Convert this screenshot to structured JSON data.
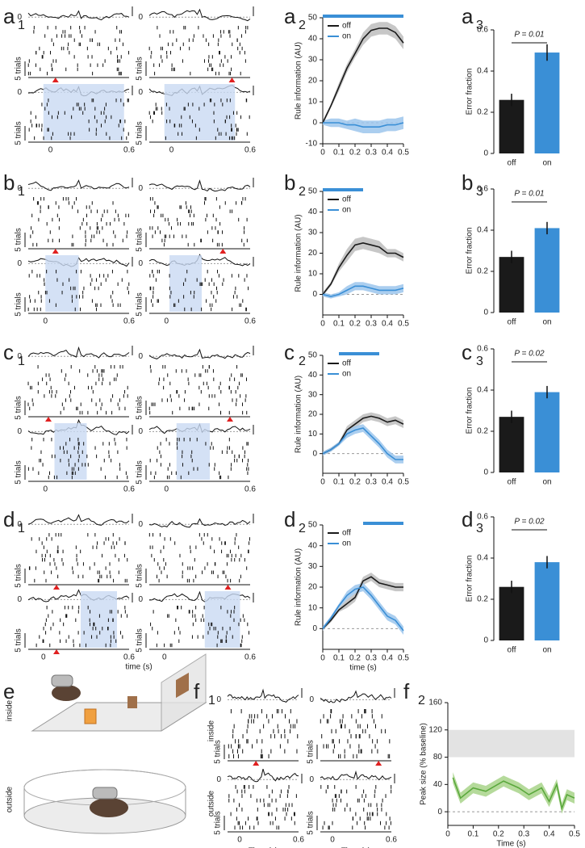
{
  "panels": [
    {
      "letter": "a",
      "sub": "1"
    },
    {
      "letter": "a",
      "sub": "2"
    },
    {
      "letter": "a",
      "sub": "3"
    },
    {
      "letter": "b",
      "sub": "1"
    },
    {
      "letter": "b",
      "sub": "2"
    },
    {
      "letter": "b",
      "sub": "3"
    },
    {
      "letter": "c",
      "sub": "1"
    },
    {
      "letter": "c",
      "sub": "2"
    },
    {
      "letter": "c",
      "sub": "3"
    },
    {
      "letter": "d",
      "sub": "1"
    },
    {
      "letter": "d",
      "sub": "2"
    },
    {
      "letter": "d",
      "sub": "3"
    },
    {
      "letter": "e"
    },
    {
      "letter": "f",
      "sub": "1"
    },
    {
      "letter": "f",
      "sub": "2"
    }
  ],
  "rasters": {
    "zero": "0",
    "trials": "5 trials",
    "x_start": "0",
    "x_end": "0.6",
    "xlabel": "time (s)"
  },
  "e": {
    "inside": "inside",
    "outside": "outside"
  },
  "f1": {
    "inside": "inside",
    "outside": "outside",
    "trials": "5 trials",
    "zero": "0",
    "x_start": "0",
    "x_end": "0.6",
    "xlabel": "Time (s)"
  },
  "chart_data": [
    {
      "type": "line",
      "x": [
        0,
        0.05,
        0.1,
        0.15,
        0.2,
        0.25,
        0.3,
        0.35,
        0.4,
        0.45,
        0.5
      ],
      "series": [
        {
          "name": "off",
          "color": "#1a1a1a",
          "band_color": "#bdbdbd",
          "values": [
            0,
            8,
            17,
            26,
            33,
            40,
            44,
            45,
            45,
            43,
            38
          ],
          "errors": [
            1,
            1,
            2,
            2,
            2,
            3,
            3,
            3,
            3,
            3,
            3
          ]
        },
        {
          "name": "on",
          "color": "#3a8fd6",
          "band_color": "#9cc6ec",
          "values": [
            0,
            0,
            0,
            -1,
            -1,
            -2,
            -2,
            -2,
            -1,
            -1,
            0
          ],
          "errors": [
            1,
            2,
            2,
            2,
            3,
            3,
            3,
            3,
            3,
            3,
            3
          ]
        }
      ],
      "xlim": [
        0,
        0.5
      ],
      "ylim": [
        -10,
        50
      ],
      "xticks": [
        0,
        0.1,
        0.2,
        0.3,
        0.4,
        0.5
      ],
      "yticks": [
        -10,
        0,
        10,
        20,
        30,
        40,
        50
      ],
      "ylabel": "Rule information (AU)",
      "sig_bar": [
        0,
        0.5
      ],
      "sig_color": "#3a8fd6"
    },
    {
      "type": "bar",
      "categories": [
        "off",
        "on"
      ],
      "values": [
        0.26,
        0.49
      ],
      "errors": [
        0.03,
        0.04
      ],
      "colors": [
        "#1a1a1a",
        "#3a8fd6"
      ],
      "ylim": [
        0,
        0.6
      ],
      "yticks": [
        0,
        0.2,
        0.4,
        0.6
      ],
      "ylabel": "Error fraction",
      "annotation": "P = 0.01"
    },
    {
      "type": "line",
      "x": [
        0,
        0.05,
        0.1,
        0.15,
        0.2,
        0.25,
        0.3,
        0.35,
        0.4,
        0.45,
        0.5
      ],
      "series": [
        {
          "name": "off",
          "color": "#1a1a1a",
          "band_color": "#bdbdbd",
          "values": [
            0,
            5,
            13,
            19,
            24,
            25,
            24,
            23,
            20,
            20,
            18
          ],
          "errors": [
            1,
            1,
            2,
            3,
            3,
            3,
            3,
            3,
            2,
            2,
            2
          ]
        },
        {
          "name": "on",
          "color": "#3a8fd6",
          "band_color": "#9cc6ec",
          "values": [
            0,
            -1,
            0,
            2,
            4,
            4,
            3,
            2,
            2,
            2,
            3
          ],
          "errors": [
            1,
            1,
            1,
            2,
            2,
            2,
            2,
            2,
            2,
            2,
            2
          ]
        }
      ],
      "xlim": [
        0,
        0.5
      ],
      "ylim": [
        -10,
        50
      ],
      "xticks": [
        0,
        0.1,
        0.2,
        0.3,
        0.4,
        0.5
      ],
      "yticks": [
        0,
        10,
        20,
        30,
        40,
        50
      ],
      "ylabel": "Rule information (AU)",
      "sig_bar": [
        0,
        0.25
      ],
      "sig_color": "#3a8fd6"
    },
    {
      "type": "bar",
      "categories": [
        "off",
        "on"
      ],
      "values": [
        0.27,
        0.41
      ],
      "errors": [
        0.03,
        0.03
      ],
      "colors": [
        "#1a1a1a",
        "#3a8fd6"
      ],
      "ylim": [
        0,
        0.6
      ],
      "yticks": [
        0,
        0.2,
        0.4,
        0.6
      ],
      "ylabel": "Error fraction",
      "annotation": "P = 0.01"
    },
    {
      "type": "line",
      "x": [
        0,
        0.05,
        0.1,
        0.15,
        0.2,
        0.25,
        0.3,
        0.35,
        0.4,
        0.45,
        0.5
      ],
      "series": [
        {
          "name": "off",
          "color": "#1a1a1a",
          "band_color": "#bdbdbd",
          "values": [
            0,
            2,
            5,
            12,
            15,
            18,
            19,
            18,
            16,
            17,
            15
          ],
          "errors": [
            1,
            1,
            1,
            2,
            2,
            2,
            2,
            2,
            2,
            2,
            2
          ]
        },
        {
          "name": "on",
          "color": "#3a8fd6",
          "band_color": "#9cc6ec",
          "values": [
            0,
            2,
            5,
            10,
            12,
            13,
            9,
            5,
            0,
            -3,
            -3
          ],
          "errors": [
            1,
            1,
            1,
            2,
            2,
            2,
            2,
            2,
            2,
            2,
            2
          ]
        }
      ],
      "xlim": [
        0,
        0.5
      ],
      "ylim": [
        -10,
        50
      ],
      "xticks": [
        0,
        0.1,
        0.2,
        0.3,
        0.4,
        0.5
      ],
      "yticks": [
        0,
        10,
        20,
        30,
        40,
        50
      ],
      "ylabel": "Rule information (AU)",
      "sig_bar": [
        0.1,
        0.35
      ],
      "sig_color": "#3a8fd6"
    },
    {
      "type": "bar",
      "categories": [
        "off",
        "on"
      ],
      "values": [
        0.27,
        0.39
      ],
      "errors": [
        0.03,
        0.03
      ],
      "colors": [
        "#1a1a1a",
        "#3a8fd6"
      ],
      "ylim": [
        0,
        0.6
      ],
      "yticks": [
        0,
        0.2,
        0.4,
        0.6
      ],
      "ylabel": "Error fraction",
      "annotation": "P = 0.02"
    },
    {
      "type": "line",
      "x": [
        0,
        0.05,
        0.1,
        0.15,
        0.2,
        0.25,
        0.3,
        0.35,
        0.4,
        0.45,
        0.5
      ],
      "series": [
        {
          "name": "off",
          "color": "#1a1a1a",
          "band_color": "#bdbdbd",
          "values": [
            0,
            4,
            9,
            12,
            15,
            23,
            25,
            22,
            21,
            20,
            20
          ],
          "errors": [
            1,
            1,
            1,
            2,
            2,
            2,
            2,
            2,
            2,
            2,
            2
          ]
        },
        {
          "name": "on",
          "color": "#3a8fd6",
          "band_color": "#9cc6ec",
          "values": [
            0,
            5,
            11,
            16,
            19,
            20,
            16,
            11,
            6,
            4,
            -1
          ],
          "errors": [
            1,
            1,
            1,
            2,
            2,
            2,
            2,
            2,
            2,
            2,
            2
          ]
        }
      ],
      "xlim": [
        0,
        0.5
      ],
      "ylim": [
        -10,
        50
      ],
      "xticks": [
        0,
        0.1,
        0.2,
        0.3,
        0.4,
        0.5
      ],
      "yticks": [
        0,
        10,
        20,
        30,
        40,
        50
      ],
      "ylabel": "Rule information (AU)",
      "xlabel": "time (s)",
      "sig_bar": [
        0.25,
        0.5
      ],
      "sig_color": "#3a8fd6"
    },
    {
      "type": "bar",
      "categories": [
        "off",
        "on"
      ],
      "values": [
        0.26,
        0.38
      ],
      "errors": [
        0.03,
        0.03
      ],
      "colors": [
        "#1a1a1a",
        "#3a8fd6"
      ],
      "ylim": [
        0,
        0.6
      ],
      "yticks": [
        0,
        0.2,
        0.4,
        0.6
      ],
      "ylabel": "Error fraction",
      "annotation": "P = 0.02"
    },
    {
      "type": "line",
      "x": [
        0.02,
        0.05,
        0.1,
        0.15,
        0.22,
        0.28,
        0.32,
        0.37,
        0.4,
        0.43,
        0.45,
        0.47,
        0.5
      ],
      "series": [
        {
          "color": "#5aa83c",
          "band_color": "#a8d38a",
          "values": [
            50,
            20,
            35,
            30,
            45,
            35,
            25,
            35,
            15,
            40,
            5,
            25,
            20
          ],
          "errors": [
            8,
            8,
            8,
            8,
            8,
            8,
            8,
            8,
            8,
            8,
            8,
            8,
            8
          ]
        }
      ],
      "xlim": [
        0,
        0.5
      ],
      "ylim": [
        -20,
        160
      ],
      "xticks": [
        0,
        0.1,
        0.2,
        0.3,
        0.4,
        0.5
      ],
      "yticks": [
        0,
        40,
        80,
        120,
        160
      ],
      "ylabel": "Peak size (% baseline)",
      "xlabel": "Time (s)",
      "baseline_band": [
        80,
        120
      ]
    }
  ]
}
